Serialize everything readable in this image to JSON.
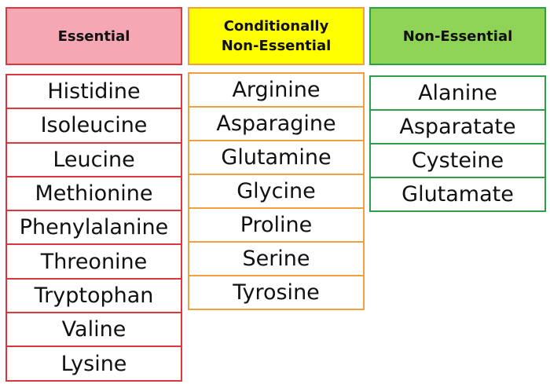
{
  "columns": {
    "essential": {
      "header": "Essential",
      "items": [
        "Histidine",
        "Isoleucine",
        "Leucine",
        "Methionine",
        "Phenylalanine",
        "Threonine",
        "Tryptophan",
        "Valine",
        "Lysine"
      ]
    },
    "conditional": {
      "header_line1": "Conditionally",
      "header_line2": "Non-Essential",
      "items": [
        "Arginine",
        "Asparagine",
        "Glutamine",
        "Glycine",
        "Proline",
        "Serine",
        "Tyrosine"
      ]
    },
    "nonessential": {
      "header": "Non-Essential",
      "items": [
        "Alanine",
        "Asparatate",
        "Cysteine",
        "Glutamate"
      ]
    }
  },
  "colors": {
    "essential_fill": "#f5a8b3",
    "essential_border": "#d9383f",
    "conditional_fill": "#ffff00",
    "conditional_border": "#f2a03d",
    "nonessential_fill": "#8fd357",
    "nonessential_border": "#2f9e4a"
  }
}
